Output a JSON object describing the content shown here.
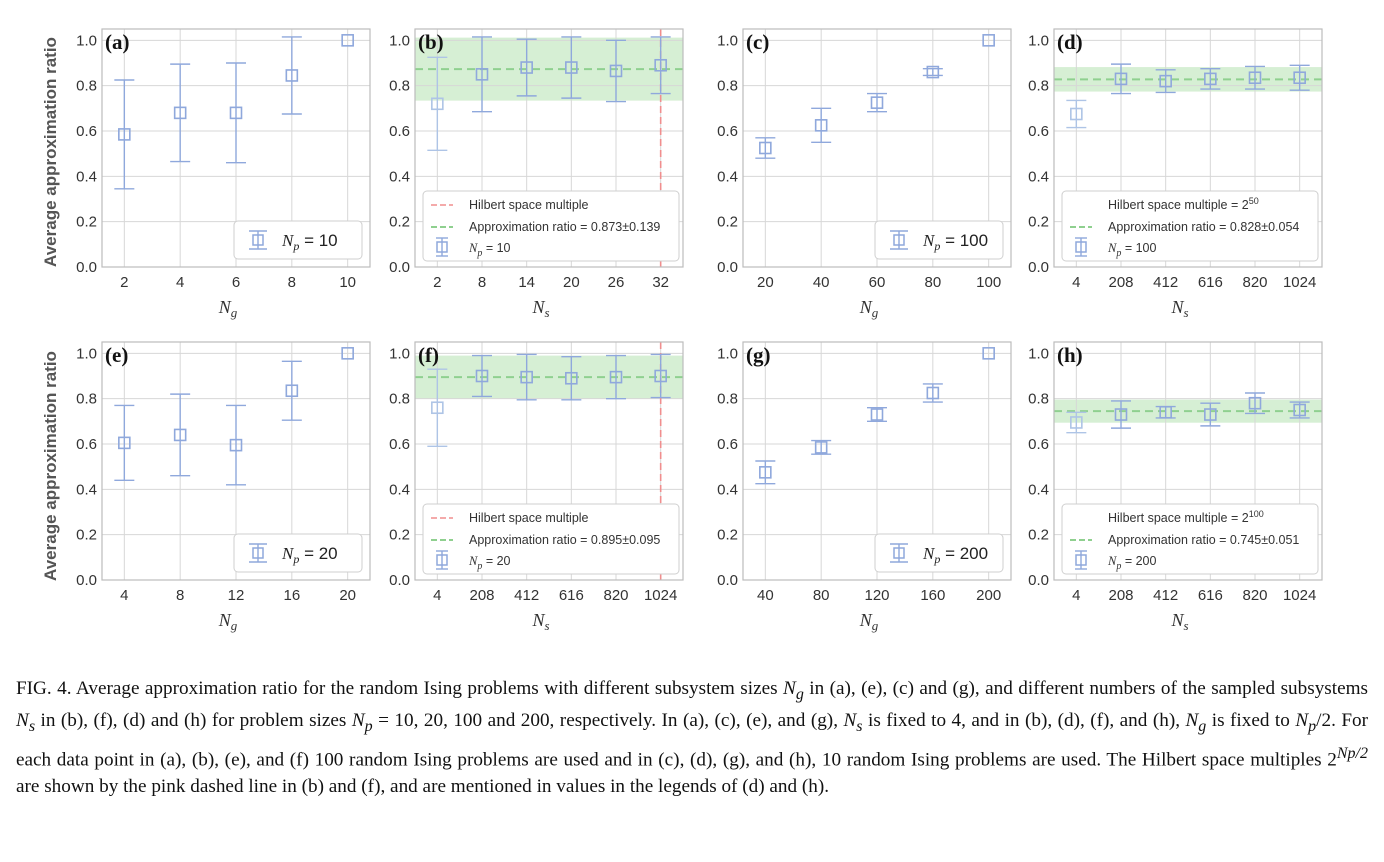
{
  "colors": {
    "marker": "#8fa8dc",
    "marker_light": "#aec4e6",
    "mean_line": "#8fd08f",
    "band": "#cfeccc",
    "hilbert": "#f08e8e",
    "grid": "#d7d7d7",
    "frame": "#bcbcbc"
  },
  "ylabel": "Average approximation ratio",
  "caption": {
    "fig_label": "FIG. 4.",
    "s1": "Average approximation ratio for the random Ising problems with different subsystem sizes",
    "ng": "N",
    "ng_sub": "g",
    "s2": "in (a), (e), (c) and (g), and different numbers of the sampled subsystems",
    "ns": "N",
    "ns_sub": "s",
    "s3": "in (b), (f), (d) and (h) for problem sizes",
    "np": "N",
    "np_sub": "p",
    "s4": "= 10, 20, 100 and 200, respectively. In (a), (c), (e), and (g),",
    "s5": "is fixed to 4, and in (b), (d), (f), and (h),",
    "s6": "is fixed to",
    "s6b": "/2. For each data point in (a), (b), (e), and (f) 100 random Ising problems are used and in (c), (d), (g), and (h), 10 random Ising problems are used. The Hilbert space multiples",
    "s7a": "2",
    "s7sup": "Np/2",
    "s7": "are shown by the pink dashed line in (b) and (f), and are mentioned in values in the legends of (d) and (h)."
  },
  "chart_data": [
    {
      "panel": "(a)",
      "type": "scatter",
      "xlabel": "N",
      "xlabel_sub": "g",
      "x_ticks": [
        "2",
        "4",
        "6",
        "8",
        "10"
      ],
      "x": [
        2,
        4,
        6,
        8,
        10
      ],
      "y": [
        0.585,
        0.68,
        0.68,
        0.845,
        1.0
      ],
      "yerr": [
        0.24,
        0.215,
        0.22,
        0.17,
        0.0
      ],
      "ylim": [
        0,
        1.05
      ],
      "y_ticks": [
        "0.0",
        "0.2",
        "0.4",
        "0.6",
        "0.8",
        "1.0"
      ],
      "legend": {
        "text": "N",
        "sub": "p",
        "tail": " = 10",
        "style": "big"
      }
    },
    {
      "panel": "(b)",
      "type": "scatter",
      "xlabel": "N",
      "xlabel_sub": "s",
      "x_ticks": [
        "2",
        "8",
        "14",
        "20",
        "26",
        "32"
      ],
      "x": [
        2,
        8,
        14,
        20,
        26,
        32
      ],
      "y": [
        0.72,
        0.85,
        0.88,
        0.88,
        0.865,
        0.89
      ],
      "yerr": [
        0.205,
        0.165,
        0.125,
        0.135,
        0.135,
        0.125
      ],
      "ylim": [
        0,
        1.05
      ],
      "y_ticks": [
        "0.0",
        "0.2",
        "0.4",
        "0.6",
        "0.8",
        "1.0"
      ],
      "mean": 0.873,
      "band": [
        0.734,
        1.012
      ],
      "hilbert_x": 32,
      "legend": {
        "hilbert": "Hilbert space multiple",
        "approx": "Approximation ratio = 0.873±0.139",
        "text": "N",
        "sub": "p",
        "tail": " = 10",
        "style": "box"
      }
    },
    {
      "panel": "(c)",
      "type": "scatter",
      "xlabel": "N",
      "xlabel_sub": "g",
      "x_ticks": [
        "20",
        "40",
        "60",
        "80",
        "100"
      ],
      "x": [
        20,
        40,
        60,
        80,
        100
      ],
      "y": [
        0.525,
        0.625,
        0.725,
        0.86,
        1.0
      ],
      "yerr": [
        0.045,
        0.075,
        0.04,
        0.015,
        0.0
      ],
      "ylim": [
        0,
        1.05
      ],
      "y_ticks": [
        "0.0",
        "0.2",
        "0.4",
        "0.6",
        "0.8",
        "1.0"
      ],
      "legend": {
        "text": "N",
        "sub": "p",
        "tail": " = 100",
        "style": "big"
      }
    },
    {
      "panel": "(d)",
      "type": "scatter",
      "xlabel": "N",
      "xlabel_sub": "s",
      "x_ticks": [
        "4",
        "208",
        "412",
        "616",
        "820",
        "1024"
      ],
      "x": [
        4,
        208,
        412,
        616,
        820,
        1024
      ],
      "y": [
        0.675,
        0.83,
        0.82,
        0.83,
        0.835,
        0.835
      ],
      "yerr": [
        0.06,
        0.065,
        0.05,
        0.045,
        0.05,
        0.055
      ],
      "ylim": [
        0,
        1.05
      ],
      "y_ticks": [
        "0.0",
        "0.2",
        "0.4",
        "0.6",
        "0.8",
        "1.0"
      ],
      "mean": 0.828,
      "band": [
        0.774,
        0.882
      ],
      "legend": {
        "hilbert": "Hilbert space multiple = 2",
        "hilbert_sup": "50",
        "approx": "Approximation ratio = 0.828±0.054",
        "text": "N",
        "sub": "p",
        "tail": " = 100",
        "style": "box"
      }
    },
    {
      "panel": "(e)",
      "type": "scatter",
      "xlabel": "N",
      "xlabel_sub": "g",
      "x_ticks": [
        "4",
        "8",
        "12",
        "16",
        "20"
      ],
      "x": [
        4,
        8,
        12,
        16,
        20
      ],
      "y": [
        0.605,
        0.64,
        0.595,
        0.835,
        1.0
      ],
      "yerr": [
        0.165,
        0.18,
        0.175,
        0.13,
        0.0
      ],
      "ylim": [
        0,
        1.05
      ],
      "y_ticks": [
        "0.0",
        "0.2",
        "0.4",
        "0.6",
        "0.8",
        "1.0"
      ],
      "legend": {
        "text": "N",
        "sub": "p",
        "tail": " = 20",
        "style": "big"
      }
    },
    {
      "panel": "(f)",
      "type": "scatter",
      "xlabel": "N",
      "xlabel_sub": "s",
      "x_ticks": [
        "4",
        "208",
        "412",
        "616",
        "820",
        "1024"
      ],
      "x": [
        4,
        208,
        412,
        616,
        820,
        1024
      ],
      "y": [
        0.76,
        0.9,
        0.895,
        0.89,
        0.895,
        0.9
      ],
      "yerr": [
        0.17,
        0.09,
        0.1,
        0.095,
        0.095,
        0.095
      ],
      "ylim": [
        0,
        1.05
      ],
      "y_ticks": [
        "0.0",
        "0.2",
        "0.4",
        "0.6",
        "0.8",
        "1.0"
      ],
      "mean": 0.895,
      "band": [
        0.8,
        0.99
      ],
      "hilbert_x": 1024,
      "legend": {
        "hilbert": "Hilbert space multiple",
        "approx": "Approximation ratio = 0.895±0.095",
        "text": "N",
        "sub": "p",
        "tail": " = 20",
        "style": "box"
      }
    },
    {
      "panel": "(g)",
      "type": "scatter",
      "xlabel": "N",
      "xlabel_sub": "g",
      "x_ticks": [
        "40",
        "80",
        "120",
        "160",
        "200"
      ],
      "x": [
        40,
        80,
        120,
        160,
        200
      ],
      "y": [
        0.475,
        0.585,
        0.73,
        0.825,
        1.0
      ],
      "yerr": [
        0.05,
        0.03,
        0.03,
        0.04,
        0.0
      ],
      "ylim": [
        0,
        1.05
      ],
      "y_ticks": [
        "0.0",
        "0.2",
        "0.4",
        "0.6",
        "0.8",
        "1.0"
      ],
      "legend": {
        "text": "N",
        "sub": "p",
        "tail": " = 200",
        "style": "big"
      }
    },
    {
      "panel": "(h)",
      "type": "scatter",
      "xlabel": "N",
      "xlabel_sub": "s",
      "x_ticks": [
        "4",
        "208",
        "412",
        "616",
        "820",
        "1024"
      ],
      "x": [
        4,
        208,
        412,
        616,
        820,
        1024
      ],
      "y": [
        0.695,
        0.73,
        0.74,
        0.73,
        0.78,
        0.75
      ],
      "yerr": [
        0.045,
        0.06,
        0.025,
        0.05,
        0.045,
        0.035
      ],
      "ylim": [
        0,
        1.05
      ],
      "y_ticks": [
        "0.0",
        "0.2",
        "0.4",
        "0.6",
        "0.8",
        "1.0"
      ],
      "mean": 0.745,
      "band": [
        0.694,
        0.796
      ],
      "legend": {
        "hilbert": "Hilbert space multiple = 2",
        "hilbert_sup": "100",
        "approx": "Approximation ratio = 0.745±0.051",
        "text": "N",
        "sub": "p",
        "tail": " = 200",
        "style": "box"
      }
    }
  ]
}
